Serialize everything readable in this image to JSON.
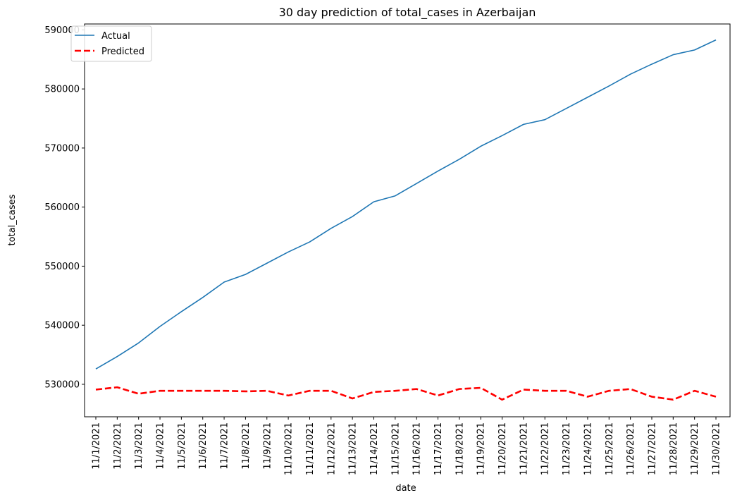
{
  "chart_data": {
    "type": "line",
    "title": "30 day prediction of total_cases in Azerbaijan",
    "xlabel": "date",
    "ylabel": "total_cases",
    "x": [
      "11/1/2021",
      "11/2/2021",
      "11/3/2021",
      "11/4/2021",
      "11/5/2021",
      "11/6/2021",
      "11/7/2021",
      "11/8/2021",
      "11/9/2021",
      "11/10/2021",
      "11/11/2021",
      "11/12/2021",
      "11/13/2021",
      "11/14/2021",
      "11/15/2021",
      "11/16/2021",
      "11/17/2021",
      "11/18/2021",
      "11/19/2021",
      "11/20/2021",
      "11/21/2021",
      "11/22/2021",
      "11/23/2021",
      "11/24/2021",
      "11/25/2021",
      "11/26/2021",
      "11/27/2021",
      "11/28/2021",
      "11/29/2021",
      "11/30/2021"
    ],
    "yticks": [
      530000,
      540000,
      550000,
      560000,
      570000,
      580000,
      590000
    ],
    "ylim": [
      524500,
      591000
    ],
    "grid": false,
    "legend_position": "top-left",
    "series": [
      {
        "name": "Actual",
        "color": "#1f77b4",
        "style": "solid",
        "values": [
          532600,
          534700,
          537000,
          539800,
          542300,
          544700,
          547300,
          548600,
          550500,
          552400,
          554100,
          556400,
          558400,
          560900,
          561900,
          564000,
          566100,
          568100,
          570300,
          572100,
          574000,
          574800,
          576700,
          578600,
          580500,
          582500,
          584200,
          585800,
          586600,
          588300
        ]
      },
      {
        "name": "Predicted",
        "color": "#ff0000",
        "style": "dashed",
        "values": [
          529100,
          529500,
          528400,
          528900,
          528900,
          528900,
          528900,
          528800,
          528900,
          528100,
          528900,
          528900,
          527600,
          528700,
          528900,
          529200,
          528100,
          529200,
          529400,
          527400,
          529100,
          528900,
          528900,
          527900,
          528900,
          529200,
          527900,
          527400,
          528900,
          527900
        ]
      }
    ]
  }
}
